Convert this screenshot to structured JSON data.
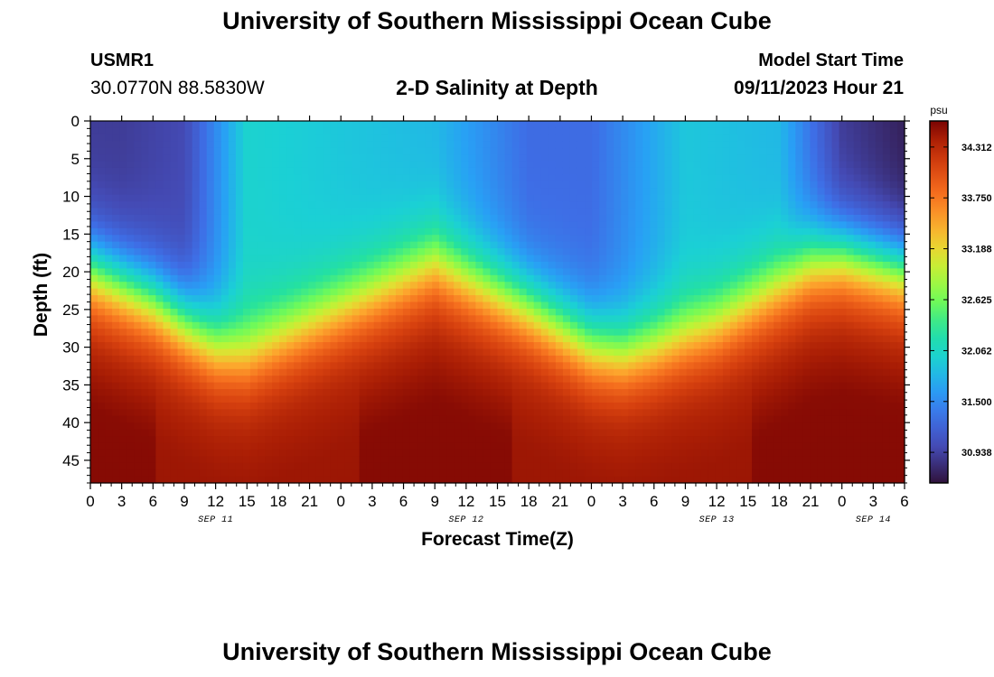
{
  "header": {
    "title": "University of Southern Mississippi Ocean Cube",
    "station": "USMR1",
    "coordinates": "30.0770N  88.5830W",
    "subtitle": "2-D Salinity at Depth",
    "start_label": "Model Start Time",
    "start_value": "09/11/2023 Hour 21"
  },
  "footer": {
    "title": "University of Southern Mississippi Ocean Cube"
  },
  "colors": {
    "background": "#ffffff",
    "axis": "#000000"
  },
  "chart_data": {
    "type": "heatmap",
    "title": "2-D Salinity at Depth",
    "xlabel": "Forecast Time(Z)",
    "ylabel": "Depth (ft)",
    "x_range_hours": [
      0,
      78
    ],
    "y_range_ft": [
      0,
      48
    ],
    "y_inverted": true,
    "x_tick_labels": [
      "0",
      "3",
      "6",
      "9",
      "12",
      "15",
      "18",
      "21",
      "0",
      "3",
      "6",
      "9",
      "12",
      "15",
      "18",
      "21",
      "0",
      "3",
      "6",
      "9",
      "12",
      "15",
      "18",
      "21",
      "0",
      "3",
      "6"
    ],
    "date_labels": [
      {
        "label": "SEP 11",
        "hour": 12
      },
      {
        "label": "SEP 12",
        "hour": 36
      },
      {
        "label": "SEP 13",
        "hour": 60
      },
      {
        "label": "SEP 14",
        "hour": 75
      }
    ],
    "y_ticks": [
      0,
      5,
      10,
      15,
      20,
      25,
      30,
      35,
      40,
      45
    ],
    "colorbar": {
      "unit": "psu",
      "min": 30.6,
      "max": 34.6,
      "tick_labels": [
        "34.312",
        "33.750",
        "33.188",
        "32.625",
        "32.062",
        "31.500",
        "30.938"
      ],
      "tick_values": [
        34.312,
        33.75,
        33.188,
        32.625,
        32.062,
        31.5,
        30.938
      ],
      "legend_position": "right"
    },
    "field_description": {
      "halocline_depth_ft_by_hour": [
        [
          0,
          20
        ],
        [
          6,
          24
        ],
        [
          12,
          30
        ],
        [
          15,
          31
        ],
        [
          18,
          29
        ],
        [
          24,
          25
        ],
        [
          30,
          21
        ],
        [
          33,
          19
        ],
        [
          36,
          21
        ],
        [
          42,
          25
        ],
        [
          48,
          30
        ],
        [
          51,
          31
        ],
        [
          54,
          30
        ],
        [
          60,
          27
        ],
        [
          66,
          22
        ],
        [
          69,
          19
        ],
        [
          72,
          18
        ],
        [
          78,
          20
        ]
      ],
      "surface_salinity_psu_by_hour": [
        [
          0,
          30.9
        ],
        [
          3,
          30.9
        ],
        [
          9,
          31.0
        ],
        [
          15,
          32.0
        ],
        [
          24,
          31.9
        ],
        [
          33,
          31.8
        ],
        [
          42,
          31.3
        ],
        [
          48,
          31.3
        ],
        [
          57,
          31.9
        ],
        [
          66,
          31.8
        ],
        [
          72,
          30.9
        ],
        [
          78,
          30.7
        ]
      ],
      "deep_salinity_psu": 34.4
    }
  }
}
